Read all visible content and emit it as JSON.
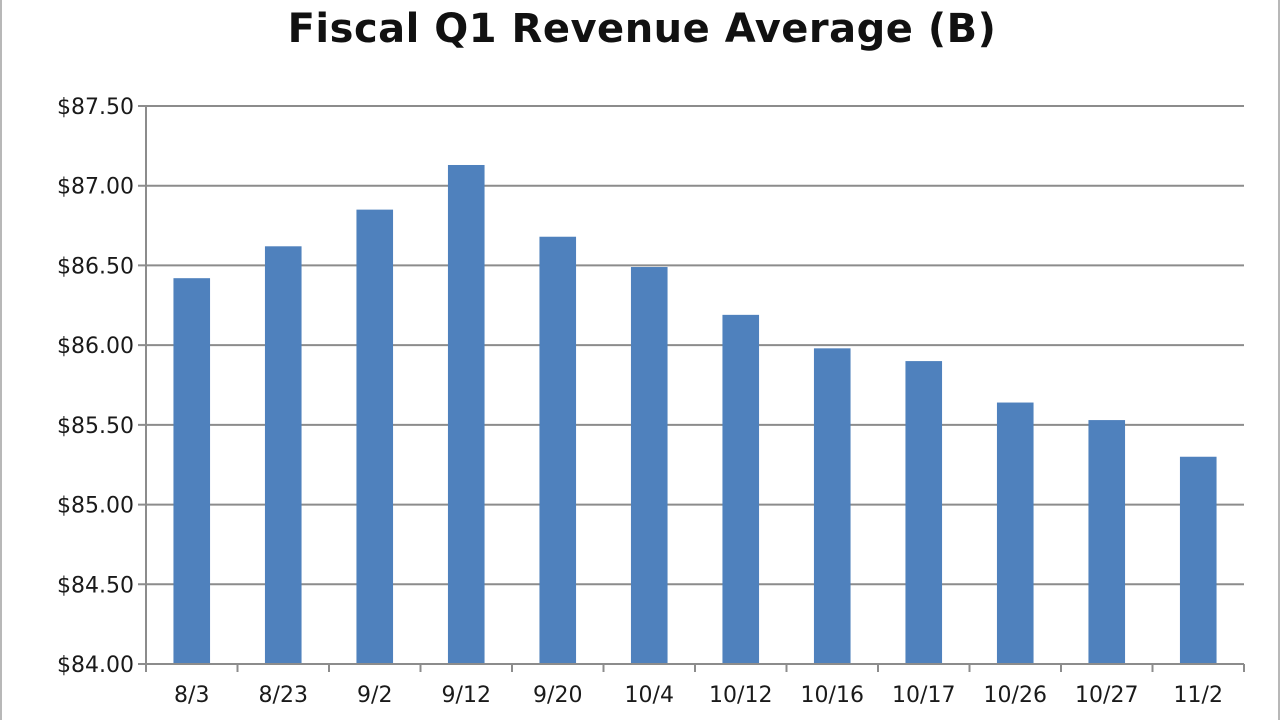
{
  "chart_data": {
    "type": "bar",
    "title": "Fiscal Q1 Revenue Average (B)",
    "xlabel": "",
    "ylabel": "",
    "categories": [
      "8/3",
      "8/23",
      "9/2",
      "9/12",
      "9/20",
      "10/4",
      "10/12",
      "10/16",
      "10/17",
      "10/26",
      "10/27",
      "11/2"
    ],
    "values": [
      86.42,
      86.62,
      86.85,
      87.13,
      86.68,
      86.49,
      86.19,
      85.98,
      85.9,
      85.64,
      85.53,
      85.3
    ],
    "ylim": [
      84.0,
      87.5
    ],
    "yticks": [
      "$84.00",
      "$84.50",
      "$85.00",
      "$85.50",
      "$86.00",
      "$86.50",
      "$87.00",
      "$87.50"
    ],
    "grid": true,
    "legend": "none",
    "bar_color": "#4f81bd",
    "grid_color": "#8c8c8c"
  }
}
